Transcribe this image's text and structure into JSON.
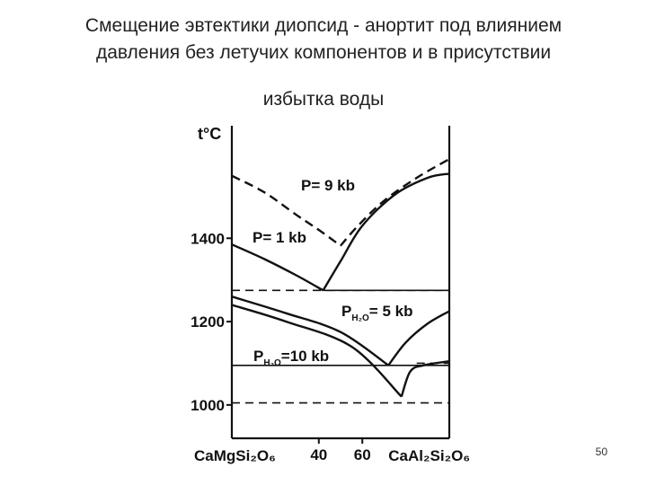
{
  "slide": {
    "title_lines": [
      "Смещение эвтектики диопсид - анортит под влиянием",
      "давления без летучих компонентов и в присутствии",
      "избытка воды"
    ],
    "page_number": "50"
  },
  "chart_data": {
    "type": "line",
    "ylabel": "t°C",
    "y_ticks": [
      "1400",
      "1200",
      "1000"
    ],
    "x_ticks": [
      "40",
      "60"
    ],
    "x_left_label": "CaMgSi₂O₆",
    "x_right_label": "CaAl₂Si₂O₆",
    "xlim": [
      0,
      100
    ],
    "ylim": [
      920,
      1670
    ],
    "grid": false,
    "colors": {
      "curve": "#111111",
      "text": "#111111"
    },
    "series": [
      {
        "name": "P= 9 kb",
        "dashed": true,
        "left_branch": [
          [
            0,
            1550
          ],
          [
            15,
            1510
          ],
          [
            30,
            1455
          ],
          [
            40,
            1420
          ],
          [
            50,
            1382
          ]
        ],
        "right_branch": [
          [
            50,
            1382
          ],
          [
            58,
            1430
          ],
          [
            70,
            1490
          ],
          [
            85,
            1545
          ],
          [
            100,
            1590
          ]
        ],
        "eutectic": {
          "x": 50,
          "y": 1382
        }
      },
      {
        "name": "P= 1 kb",
        "dashed": false,
        "left_branch": [
          [
            0,
            1385
          ],
          [
            15,
            1350
          ],
          [
            30,
            1310
          ],
          [
            42,
            1275
          ]
        ],
        "right_branch": [
          [
            42,
            1275
          ],
          [
            50,
            1345
          ],
          [
            60,
            1430
          ],
          [
            75,
            1505
          ],
          [
            90,
            1545
          ],
          [
            100,
            1555
          ]
        ],
        "eutectic": {
          "x": 42,
          "y": 1275
        }
      },
      {
        "name_main": "P",
        "name_sub": "H₂O",
        "name_value": "= 5 kb",
        "dashed": false,
        "left_branch": [
          [
            0,
            1260
          ],
          [
            25,
            1220
          ],
          [
            50,
            1175
          ],
          [
            72,
            1095
          ]
        ],
        "right_branch": [
          [
            72,
            1095
          ],
          [
            80,
            1150
          ],
          [
            90,
            1195
          ],
          [
            100,
            1225
          ]
        ],
        "eutectic": {
          "x": 72,
          "y": 1095
        }
      },
      {
        "name_main": "P",
        "name_sub": "H₂O",
        "name_value": "=10 kb",
        "dashed": false,
        "left_branch": [
          [
            0,
            1240
          ],
          [
            25,
            1200
          ],
          [
            55,
            1140
          ],
          [
            78,
            1020
          ]
        ],
        "right_branch": [
          [
            78,
            1020
          ],
          [
            82,
            1080
          ],
          [
            88,
            1095
          ],
          [
            100,
            1105
          ]
        ],
        "eutectic": {
          "x": 78,
          "y": 1020
        }
      }
    ],
    "horizontal_refs": [
      {
        "y": 1275,
        "dashed": true
      },
      {
        "y": 1275,
        "dashed": false,
        "from_x": 42
      },
      {
        "y": 1095,
        "dashed": false
      },
      {
        "y": 1100,
        "dashed": true,
        "from_x": 85
      },
      {
        "y": 1005,
        "dashed": true
      }
    ]
  }
}
